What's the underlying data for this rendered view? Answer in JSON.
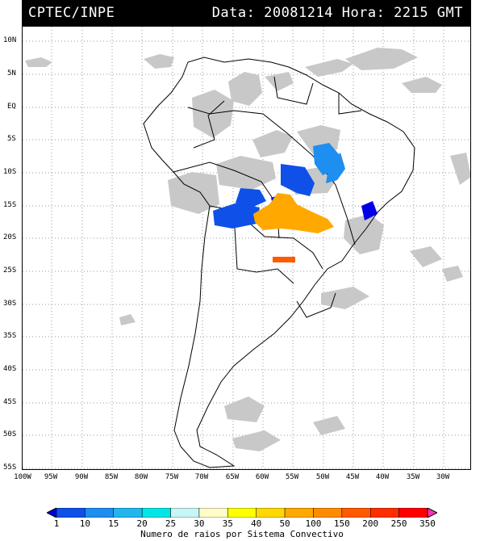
{
  "header": {
    "left": "CPTEC/INPE",
    "right": "Data: 20081214 Hora: 2215 GMT"
  },
  "map": {
    "lat_labels": [
      "10N",
      "5N",
      "EQ",
      "5S",
      "10S",
      "15S",
      "20S",
      "25S",
      "30S",
      "35S",
      "40S",
      "45S",
      "50S",
      "55S"
    ],
    "lon_labels": [
      "100W",
      "95W",
      "90W",
      "85W",
      "80W",
      "75W",
      "70W",
      "65W",
      "60W",
      "55W",
      "50W",
      "45W",
      "40W",
      "35W",
      "30W"
    ],
    "colors": {
      "land_outline": "#000000",
      "clouds": "#c8c8c8",
      "grid": "#9a9a9a"
    }
  },
  "colorbar": {
    "labels": [
      "1",
      "10",
      "15",
      "20",
      "25",
      "30",
      "35",
      "40",
      "50",
      "100",
      "150",
      "200",
      "250",
      "350"
    ],
    "colors": [
      "#0000e6",
      "#0f50e8",
      "#1e8ef0",
      "#22b6ee",
      "#00e6e6",
      "#c8f5f5",
      "#fffcc8",
      "#ffff00",
      "#ffd800",
      "#ffa800",
      "#ff8c00",
      "#ff5a00",
      "#ff2d00",
      "#ff0000",
      "#ff32b4"
    ],
    "title": "Numero de raios por Sistema Convectivo"
  }
}
